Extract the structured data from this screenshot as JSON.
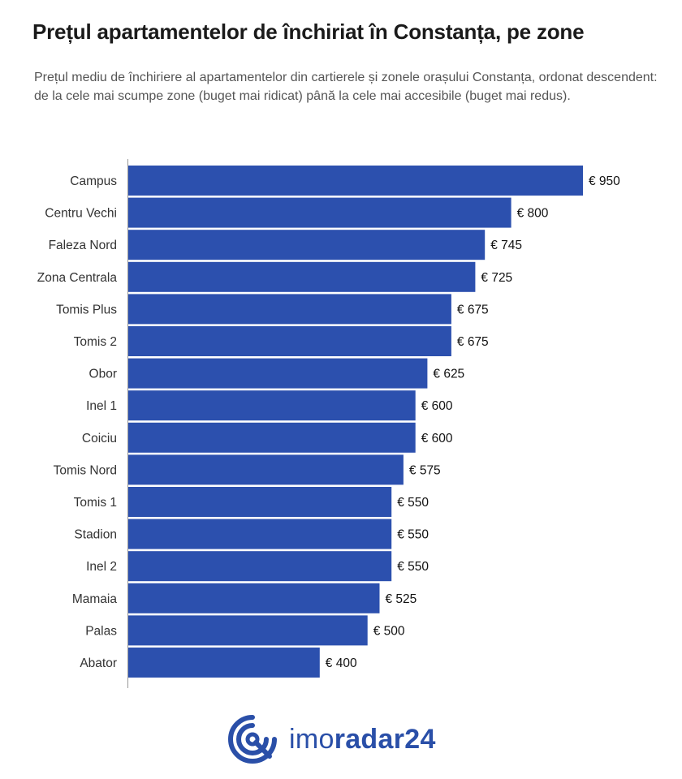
{
  "title": "Prețul apartamentelor de închiriat în Constanța, pe zone",
  "subtitle": "Prețul mediu de închiriere al apartamentelor din cartierele și zonele orașului Constanța, ordonat descendent: de la cele mai scumpe zone (buget mai ridicat) până la cele mai accesibile (buget mai redus).",
  "colors": {
    "bar": "#2c50ae",
    "axis": "#999999",
    "brand": "#2a4fa8"
  },
  "chart_data": {
    "type": "bar",
    "orientation": "horizontal",
    "categories": [
      "Campus",
      "Centru Vechi",
      "Faleza Nord",
      "Zona Centrala",
      "Tomis Plus",
      "Tomis 2",
      "Obor",
      "Inel 1",
      "Coiciu",
      "Tomis Nord",
      "Tomis 1",
      "Stadion",
      "Inel 2",
      "Mamaia",
      "Palas",
      "Abator"
    ],
    "values": [
      950,
      800,
      745,
      725,
      675,
      675,
      625,
      600,
      600,
      575,
      550,
      550,
      550,
      525,
      500,
      400
    ],
    "value_labels": [
      "€ 950",
      "€ 800",
      "€ 745",
      "€ 725",
      "€ 675",
      "€ 675",
      "€ 625",
      "€ 600",
      "€ 600",
      "€ 575",
      "€ 550",
      "€ 550",
      "€ 550",
      "€ 525",
      "€ 500",
      "€ 400"
    ],
    "xlim": [
      0,
      950
    ],
    "grid": false,
    "legend": "none"
  },
  "logo": {
    "text_light": "imo",
    "text_bold": "radar24",
    "icon": "radar-target-icon"
  }
}
